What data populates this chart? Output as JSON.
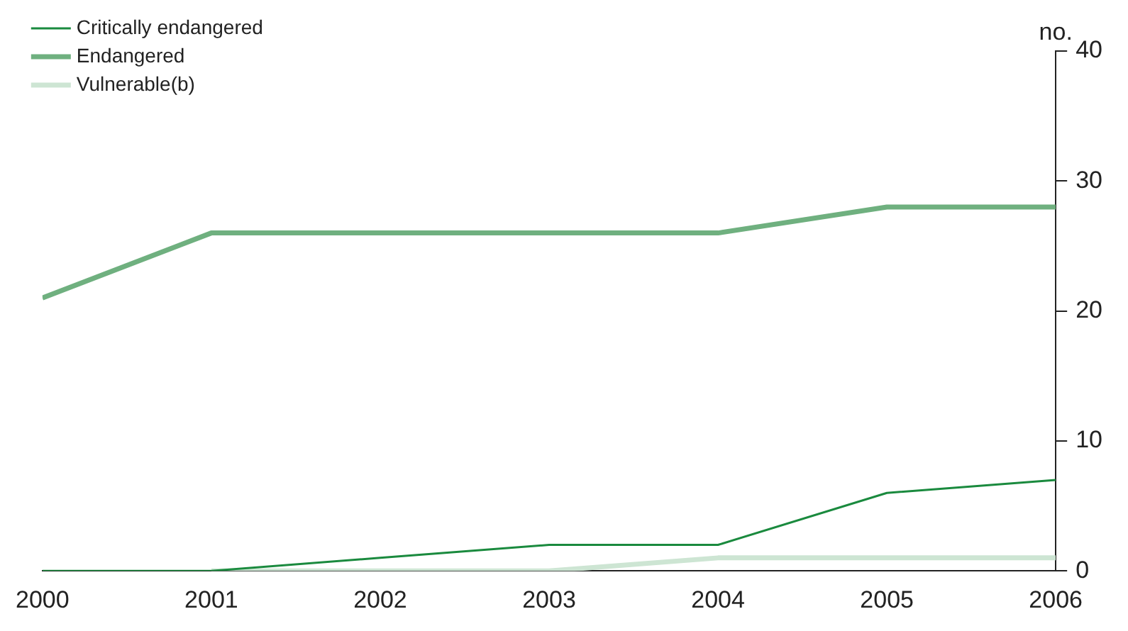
{
  "chart_data": {
    "type": "line",
    "ylabel": "no.",
    "x": [
      2000,
      2001,
      2002,
      2003,
      2004,
      2005,
      2006
    ],
    "xlim": [
      2000,
      2006
    ],
    "xticks": [
      2000,
      2001,
      2002,
      2003,
      2004,
      2005,
      2006
    ],
    "ylim": [
      0,
      40
    ],
    "yticks": [
      0,
      10,
      20,
      30,
      40
    ],
    "grid": false,
    "legend": "top left",
    "marker": "none",
    "series": [
      {
        "name": "Critically endangered",
        "color": "#1a8a3e",
        "values": [
          0,
          0,
          1,
          2,
          2,
          6,
          7
        ]
      },
      {
        "name": "Endangered",
        "color": "#6fb07f",
        "values": [
          21,
          26,
          26,
          26,
          26,
          28,
          28
        ]
      },
      {
        "name": "Vulnerable(b)",
        "color": "#cde5d3",
        "values": [
          null,
          0,
          0,
          0,
          1,
          1,
          1
        ]
      }
    ]
  }
}
